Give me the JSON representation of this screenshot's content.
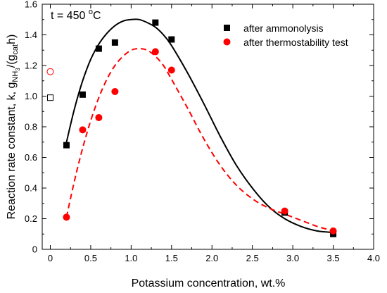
{
  "chart_data": {
    "type": "scatter",
    "annotation": {
      "prefix": "t = 450 ",
      "sup": "o",
      "suffix": "C"
    },
    "xlabel": "Potassium concentration, wt.%",
    "ylabel": {
      "main": "Reaction rate constant, k, g",
      "sub1": "NH",
      "sub2": "3",
      "mid": "/(g",
      "sub3": "cat",
      "end": "h)"
    },
    "xlim": [
      -0.1,
      4.0
    ],
    "ylim": [
      0,
      1.6
    ],
    "xticks": [
      "0",
      "0.5",
      "1.0",
      "1.5",
      "2.0",
      "2.5",
      "3.0",
      "3.5",
      "4.0"
    ],
    "yticks": [
      "0",
      "0.2",
      "0.4",
      "0.6",
      "0.8",
      "1.0",
      "1.2",
      "1.4",
      "1.6"
    ],
    "grid": false,
    "legend_position": "top-right",
    "series": [
      {
        "name": "after ammonolysis",
        "marker": "square",
        "color": "#000000",
        "x": [
          0.2,
          0.4,
          0.6,
          0.8,
          1.3,
          1.5,
          2.9,
          3.5
        ],
        "y": [
          0.68,
          1.01,
          1.31,
          1.35,
          1.48,
          1.37,
          0.24,
          0.1
        ],
        "fit": {
          "style": "solid",
          "x": [
            0.2,
            0.3,
            0.4,
            0.5,
            0.6,
            0.7,
            0.8,
            0.9,
            1.0,
            1.1,
            1.2,
            1.3,
            1.4,
            1.5,
            1.7,
            1.9,
            2.1,
            2.3,
            2.5,
            2.7,
            2.9,
            3.1,
            3.3,
            3.5
          ],
          "y": [
            0.7,
            0.92,
            1.1,
            1.24,
            1.34,
            1.41,
            1.46,
            1.49,
            1.5,
            1.5,
            1.48,
            1.45,
            1.4,
            1.33,
            1.15,
            0.95,
            0.74,
            0.55,
            0.4,
            0.28,
            0.2,
            0.15,
            0.12,
            0.11
          ]
        },
        "open_point": {
          "x": 0,
          "y": 0.99
        }
      },
      {
        "name": "after thermostability test",
        "marker": "circle",
        "color": "#ff0000",
        "x": [
          0.2,
          0.4,
          0.6,
          0.8,
          1.3,
          1.5,
          2.9,
          3.5
        ],
        "y": [
          0.21,
          0.78,
          0.86,
          1.03,
          1.29,
          1.17,
          0.25,
          0.12
        ],
        "fit": {
          "style": "dashed",
          "x": [
            0.2,
            0.3,
            0.4,
            0.5,
            0.6,
            0.7,
            0.8,
            0.9,
            1.0,
            1.1,
            1.2,
            1.3,
            1.4,
            1.5,
            1.7,
            1.9,
            2.1,
            2.3,
            2.5,
            2.7,
            2.9,
            3.1,
            3.3,
            3.5
          ],
          "y": [
            0.21,
            0.45,
            0.66,
            0.84,
            0.99,
            1.11,
            1.2,
            1.26,
            1.3,
            1.31,
            1.3,
            1.26,
            1.2,
            1.11,
            0.92,
            0.72,
            0.55,
            0.42,
            0.33,
            0.27,
            0.23,
            0.19,
            0.15,
            0.12
          ]
        },
        "open_point": {
          "x": 0,
          "y": 1.16
        }
      }
    ]
  }
}
